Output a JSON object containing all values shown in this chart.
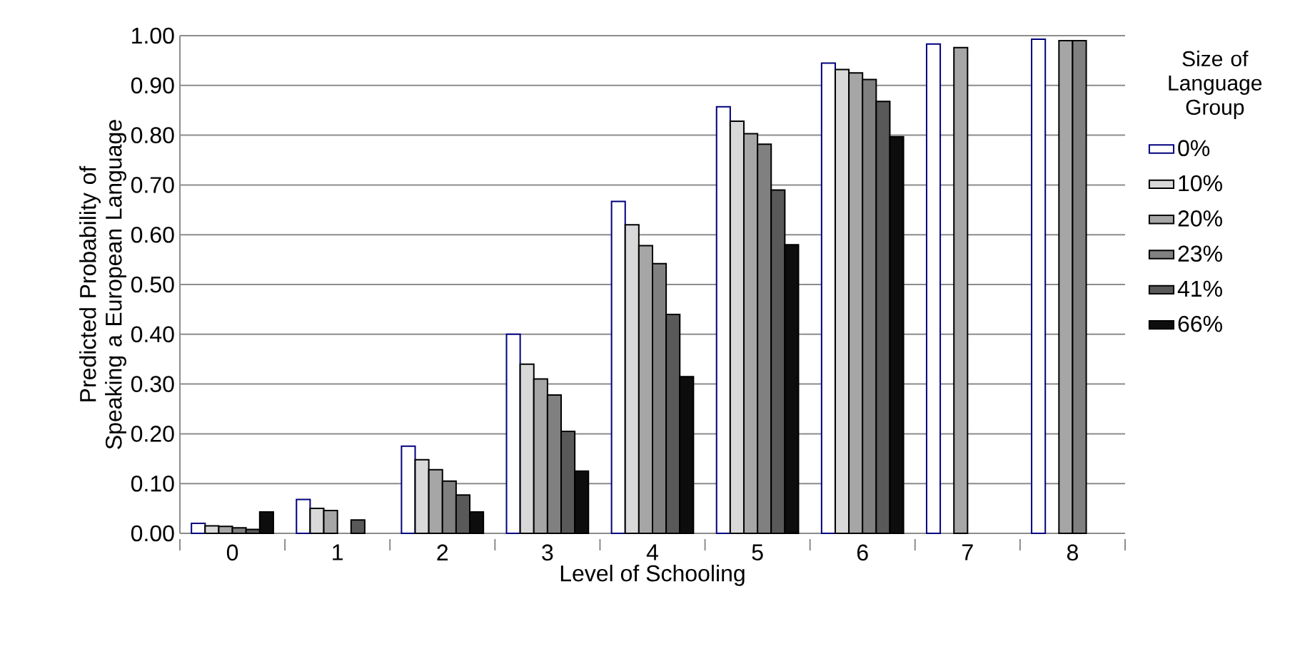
{
  "chart_data": {
    "type": "bar",
    "xlabel": "Level of Schooling",
    "ylabel": "Predicted Probability of Speaking a European Language",
    "legend_title": "Size of Language Group",
    "categories": [
      "0",
      "1",
      "2",
      "3",
      "4",
      "5",
      "6",
      "7",
      "8"
    ],
    "series": [
      {
        "name": "0%",
        "color": "#ffffff",
        "values": [
          0.02,
          0.068,
          0.175,
          0.4,
          0.667,
          0.857,
          0.945,
          0.983,
          0.993
        ]
      },
      {
        "name": "10%",
        "color": "#d9d9d9",
        "values": [
          0.015,
          0.05,
          0.148,
          0.34,
          0.62,
          0.828,
          0.932,
          null,
          null
        ]
      },
      {
        "name": "20%",
        "color": "#a6a6a6",
        "values": [
          0.014,
          0.046,
          0.128,
          0.31,
          0.578,
          0.803,
          0.925,
          0.976,
          0.99
        ]
      },
      {
        "name": "23%",
        "color": "#808080",
        "values": [
          0.011,
          null,
          0.105,
          0.278,
          0.542,
          0.782,
          0.912,
          null,
          0.99
        ]
      },
      {
        "name": "41%",
        "color": "#595959",
        "values": [
          0.008,
          0.027,
          0.077,
          0.205,
          0.44,
          0.69,
          0.868,
          null,
          null
        ]
      },
      {
        "name": "66%",
        "color": "#0d0d0d",
        "values": [
          0.043,
          null,
          0.043,
          0.125,
          0.315,
          0.58,
          0.797,
          null,
          null
        ]
      }
    ],
    "ylim": [
      0,
      1
    ],
    "yticks": [
      {
        "value": 0,
        "label": "0.00"
      },
      {
        "value": 0.1,
        "label": "0.10"
      },
      {
        "value": 0.2,
        "label": "0.20"
      },
      {
        "value": 0.3,
        "label": "0.30"
      },
      {
        "value": 0.4,
        "label": "0.40"
      },
      {
        "value": 0.5,
        "label": "0.50"
      },
      {
        "value": 0.6,
        "label": "0.60"
      },
      {
        "value": 0.7,
        "label": "0.70"
      },
      {
        "value": 0.8,
        "label": "0.80"
      },
      {
        "value": 0.9,
        "label": "0.90"
      },
      {
        "value": 1,
        "label": "1.00"
      }
    ],
    "grid": "y",
    "legend": "right"
  }
}
